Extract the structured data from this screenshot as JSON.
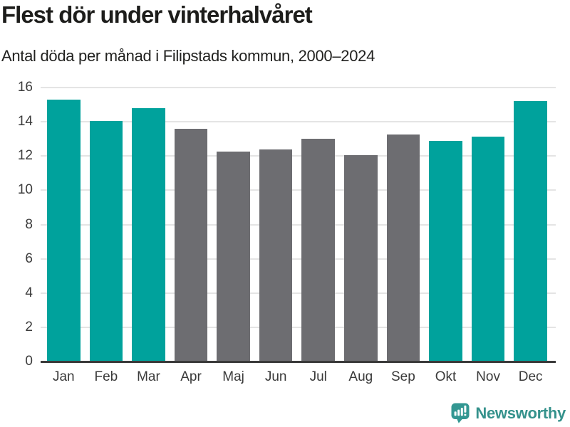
{
  "header": {
    "title": "Flest dör under vinterhalvåret",
    "subtitle": "Antal döda per månad i Filipstads kommun, 2000–2024"
  },
  "chart_data": {
    "type": "bar",
    "title": "Flest dör under vinterhalvåret",
    "subtitle": "Antal döda per månad i Filipstads kommun, 2000–2024",
    "categories": [
      "Jan",
      "Feb",
      "Mar",
      "Apr",
      "Maj",
      "Jun",
      "Jul",
      "Aug",
      "Sep",
      "Okt",
      "Nov",
      "Dec"
    ],
    "values": [
      15.3,
      14.05,
      14.8,
      13.6,
      12.25,
      12.4,
      13.0,
      12.05,
      13.25,
      12.9,
      13.15,
      15.2
    ],
    "bar_colors": [
      "teal",
      "teal",
      "teal",
      "gray",
      "gray",
      "gray",
      "gray",
      "gray",
      "gray",
      "teal",
      "teal",
      "teal"
    ],
    "colors": {
      "teal": "#00a29c",
      "gray": "#6d6d71"
    },
    "xlabel": "",
    "ylabel": "",
    "ylim": [
      0,
      16
    ],
    "yticks": [
      0,
      2,
      4,
      6,
      8,
      10,
      12,
      14,
      16
    ],
    "grid": "horizontal",
    "legend": "none",
    "highlight_meaning": "winter months (Okt–Mar) in teal, summer months (Apr–Sep) in gray"
  },
  "footer": {
    "brand": "Newsworthy",
    "brand_color": "#35928c",
    "logo_icon": "newsworthy-speech-bubble-bar-chart-icon"
  }
}
